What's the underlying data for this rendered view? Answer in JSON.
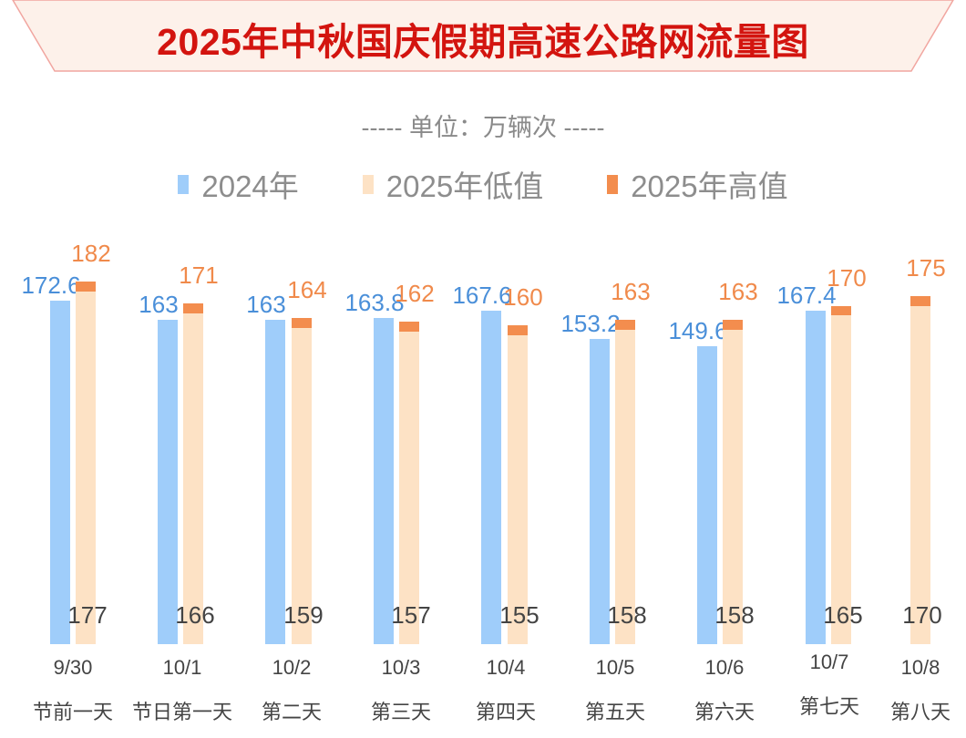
{
  "chart_data": {
    "type": "bar",
    "title": "2025年中秋国庆假期高速公路网流量图",
    "unit": "----- 单位：万辆次 -----",
    "categories": [
      "9/30",
      "10/1",
      "10/2",
      "10/3",
      "10/4",
      "10/5",
      "10/6",
      "10/7",
      "10/8"
    ],
    "sub_categories": [
      "节前一天",
      "节日第一天",
      "第二天",
      "第三天",
      "第四天",
      "第五天",
      "第六天",
      "第七天",
      "第八天"
    ],
    "series": [
      {
        "name": "2024年",
        "color": "#9fcdfa",
        "values": [
          172.6,
          163,
          163,
          163.8,
          167.6,
          153.2,
          149.6,
          167.4,
          null
        ]
      },
      {
        "name": "2025年低值",
        "color": "#fde2c5",
        "values": [
          177,
          166,
          159,
          157,
          155,
          158,
          158,
          165,
          170
        ]
      },
      {
        "name": "2025年高值",
        "color": "#f38d4e",
        "values": [
          182,
          171,
          164,
          162,
          160,
          163,
          163,
          170,
          175
        ]
      }
    ],
    "label_colors": {
      "2024": "#4a8fd9",
      "high": "#f08a4b",
      "low": "#444444"
    },
    "title_color": "#d3140f",
    "ylim": [
      0,
      182
    ],
    "grid": false,
    "legend": "top"
  }
}
